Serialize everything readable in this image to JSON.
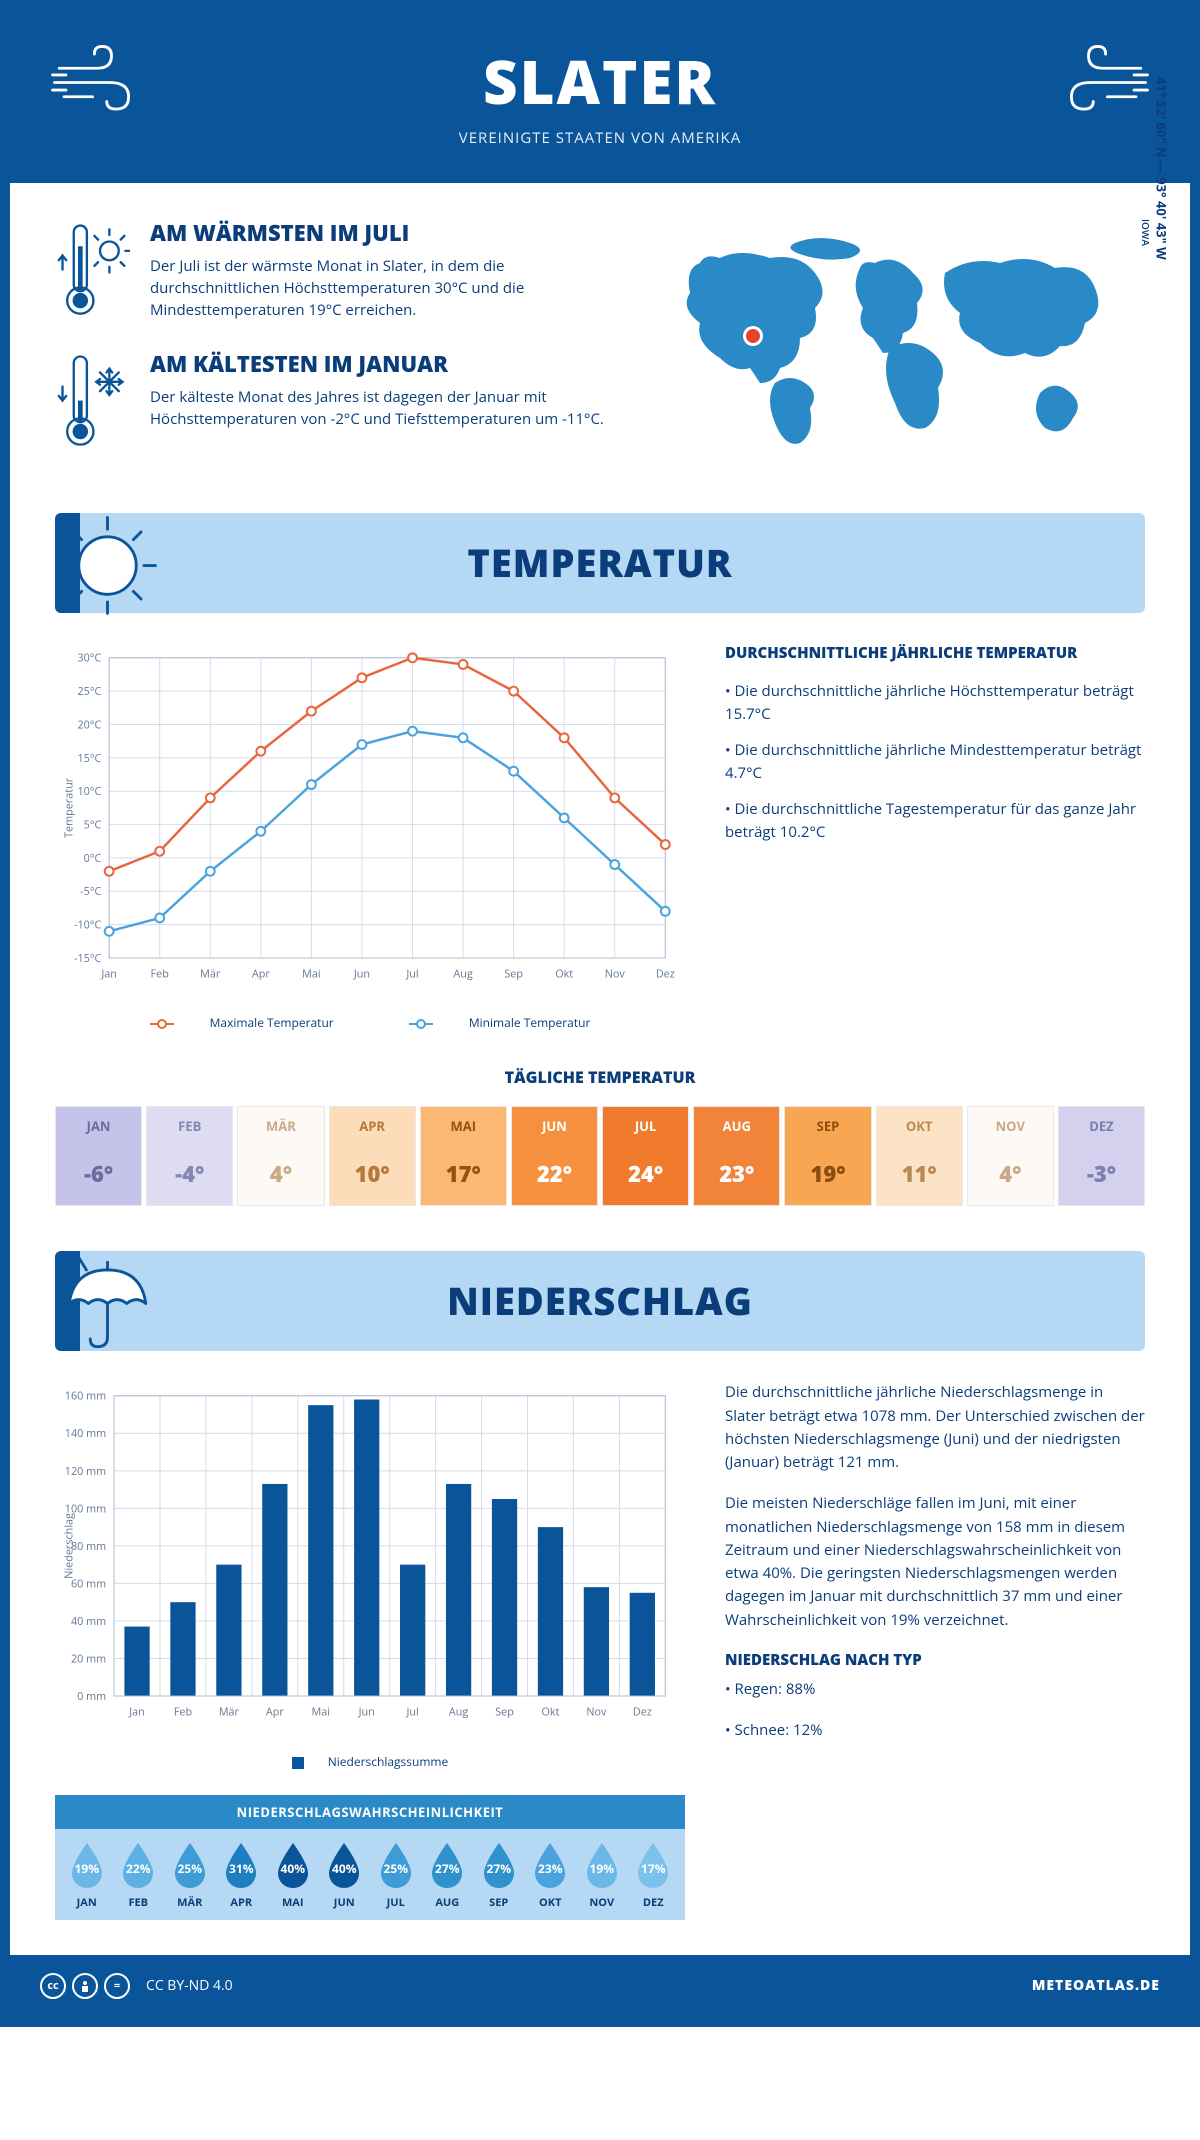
{
  "header": {
    "title": "SLATER",
    "subtitle": "VEREINIGTE STAATEN VON AMERIKA"
  },
  "intro": {
    "warm": {
      "heading": "AM WÄRMSTEN IM JULI",
      "text": "Der Juli ist der wärmste Monat in Slater, in dem die durchschnittlichen Höchsttemperaturen 30°C und die Mindesttemperaturen 19°C erreichen."
    },
    "cold": {
      "heading": "AM KÄLTESTEN IM JANUAR",
      "text": "Der kälteste Monat des Jahres ist dagegen der Januar mit Höchsttemperaturen von -2°C und Tiefsttemperaturen um -11°C."
    },
    "region": "IOWA",
    "coords": "41° 52' 60\" N — 93° 40' 43\" W"
  },
  "months": [
    "Jan",
    "Feb",
    "Mär",
    "Apr",
    "Mai",
    "Jun",
    "Jul",
    "Aug",
    "Sep",
    "Okt",
    "Nov",
    "Dez"
  ],
  "months_upper": [
    "JAN",
    "FEB",
    "MÄR",
    "APR",
    "MAI",
    "JUN",
    "JUL",
    "AUG",
    "SEP",
    "OKT",
    "NOV",
    "DEZ"
  ],
  "colors": {
    "primary": "#0a5599",
    "banner_bg": "#b5d9f4",
    "orange": "#e8663c",
    "blue_line": "#4aa3de",
    "world_fill": "#2a8ac7",
    "marker": "#e8432e",
    "grid": "#d4dce8"
  },
  "temperature": {
    "section_title": "TEMPERATUR",
    "chart": {
      "y_min": -15,
      "y_max": 30,
      "y_step": 5,
      "y_label": "Temperatur",
      "max_series": [
        -2,
        1,
        9,
        16,
        22,
        27,
        30,
        29,
        25,
        18,
        9,
        2
      ],
      "min_series": [
        -11,
        -9,
        -2,
        4,
        11,
        17,
        19,
        18,
        13,
        6,
        -1,
        -8
      ],
      "max_color": "#e8663c",
      "min_color": "#4aa3de",
      "legend_max": "Maximale Temperatur",
      "legend_min": "Minimale Temperatur"
    },
    "side": {
      "heading": "DURCHSCHNITTLICHE JÄHRLICHE TEMPERATUR",
      "bullets": [
        "• Die durchschnittliche jährliche Höchsttemperatur beträgt 15.7°C",
        "• Die durchschnittliche jährliche Mindesttemperatur beträgt 4.7°C",
        "• Die durchschnittliche Tagestemperatur für das ganze Jahr beträgt 10.2°C"
      ]
    },
    "daily": {
      "heading": "TÄGLICHE TEMPERATUR",
      "values": [
        "-6°",
        "-4°",
        "4°",
        "10°",
        "17°",
        "22°",
        "24°",
        "23°",
        "19°",
        "11°",
        "4°",
        "-3°"
      ],
      "bg_colors": [
        "#c6c3ea",
        "#dedcf2",
        "#fdf9f4",
        "#fdddb9",
        "#fbb773",
        "#f5903e",
        "#f07b2c",
        "#f2843a",
        "#f9a653",
        "#fde3c5",
        "#fdf9f4",
        "#d3d1ee"
      ],
      "text_colors": [
        "#6b6b9e",
        "#8686b4",
        "#c9a987",
        "#b57939",
        "#8f5415",
        "#ffffff",
        "#ffffff",
        "#ffffff",
        "#8a4e0f",
        "#b98a56",
        "#c9a987",
        "#7e7eb0"
      ]
    }
  },
  "precipitation": {
    "section_title": "NIEDERSCHLAG",
    "chart": {
      "y_min": 0,
      "y_max": 160,
      "y_step": 20,
      "y_label": "Niederschlag",
      "values": [
        37,
        50,
        70,
        113,
        155,
        158,
        70,
        113,
        105,
        90,
        58,
        55
      ],
      "bar_color": "#0a5599",
      "legend": "Niederschlagssumme"
    },
    "text1": "Die durchschnittliche jährliche Niederschlagsmenge in Slater beträgt etwa 1078 mm. Der Unterschied zwischen der höchsten Niederschlagsmenge (Juni) und der niedrigsten (Januar) beträgt 121 mm.",
    "text2": "Die meisten Niederschläge fallen im Juni, mit einer monatlichen Niederschlagsmenge von 158 mm in diesem Zeitraum und einer Niederschlagswahrscheinlichkeit von etwa 40%. Die geringsten Niederschlagsmengen werden dagegen im Januar mit durchschnittlich 37 mm und einer Wahrscheinlichkeit von 19% verzeichnet.",
    "type_heading": "NIEDERSCHLAG NACH TYP",
    "type_bullets": [
      "• Regen: 88%",
      "• Schnee: 12%"
    ],
    "probability": {
      "heading": "NIEDERSCHLAGSWAHRSCHEINLICHKEIT",
      "values": [
        "19%",
        "22%",
        "25%",
        "31%",
        "40%",
        "40%",
        "25%",
        "27%",
        "27%",
        "23%",
        "19%",
        "17%"
      ],
      "drop_colors": [
        "#6bb8e8",
        "#5cb0e4",
        "#3d9bd5",
        "#1e7fc0",
        "#0a5599",
        "#0a5599",
        "#3d9bd5",
        "#2f91cd",
        "#2f91cd",
        "#4aa3de",
        "#6bb8e8",
        "#7cc0ec"
      ]
    }
  },
  "footer": {
    "license": "CC BY-ND 4.0",
    "brand": "METEOATLAS.DE"
  }
}
